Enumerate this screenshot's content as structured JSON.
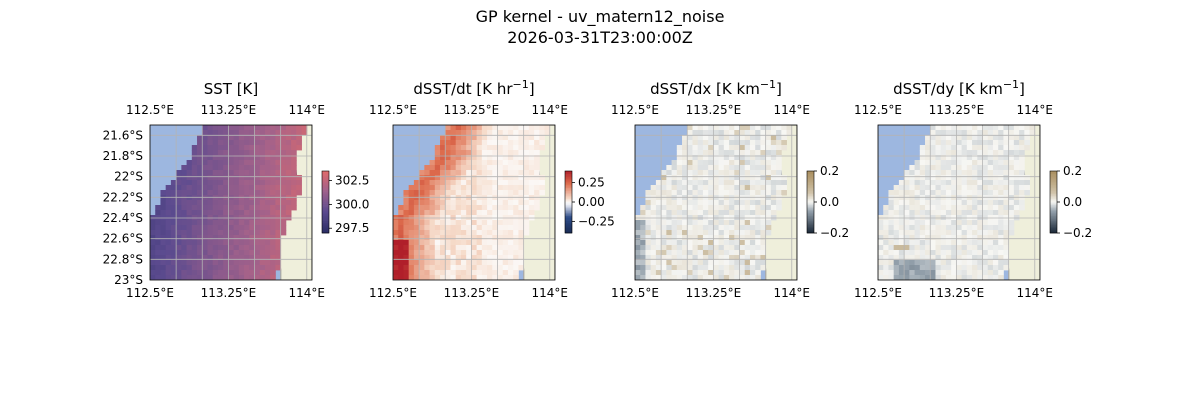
{
  "figure": {
    "title_line1": "GP kernel - uv_matern12_noise",
    "title_line2": "2026-03-31T23:00:00Z"
  },
  "colors": {
    "ocean": "#9db7e0",
    "land": "#efefdb",
    "coast": "#6d6d6d",
    "grid": "#b4b4b4",
    "sst_low": "#5c4b8f",
    "sst_high": "#e06a6a",
    "dt_low": "#2b4a86",
    "dt_high": "#b01f2a",
    "grad_low": "#1b2838",
    "grad_high": "#a88c5c"
  },
  "chart_data": [
    {
      "type": "heatmap",
      "title": "SST [K]",
      "title_sup": "",
      "title_suffix": "",
      "lon_ticks": [
        "112.5°E",
        "113.25°E",
        "114°E"
      ],
      "lat_ticks": [
        "21.6°S",
        "21.8°S",
        "22°S",
        "22.2°S",
        "22.4°S",
        "22.6°S",
        "22.8°S",
        "23°S"
      ],
      "xlim": [
        112.5,
        114.05
      ],
      "ylim": [
        -23.0,
        -21.5
      ],
      "colorbar": {
        "ticks": [
          "302.5",
          "300.0",
          "297.5"
        ],
        "tick_values": [
          302.5,
          300.0,
          297.5
        ],
        "range": [
          297.0,
          303.5
        ],
        "cmap": "plasma_muted"
      },
      "field": "sst"
    },
    {
      "type": "heatmap",
      "title": "dSST/dt [K hr",
      "title_sup": "−1",
      "title_suffix": "]",
      "lon_ticks": [
        "112.5°E",
        "113.25°E",
        "114°E"
      ],
      "lat_ticks": [],
      "xlim": [
        112.5,
        114.05
      ],
      "ylim": [
        -23.0,
        -21.5
      ],
      "colorbar": {
        "ticks": [
          "0.25",
          "0.00",
          "−0.25"
        ],
        "tick_values": [
          0.25,
          0.0,
          -0.25
        ],
        "range": [
          -0.4,
          0.4
        ],
        "cmap": "balance"
      },
      "field": "dt"
    },
    {
      "type": "heatmap",
      "title": "dSST/dx [K km",
      "title_sup": "−1",
      "title_suffix": "]",
      "lon_ticks": [
        "112.5°E",
        "113.25°E",
        "114°E"
      ],
      "lat_ticks": [],
      "xlim": [
        112.5,
        114.05
      ],
      "ylim": [
        -23.0,
        -21.5
      ],
      "colorbar": {
        "ticks": [
          "0.2",
          "0.0",
          "−0.2"
        ],
        "tick_values": [
          0.2,
          0.0,
          -0.2
        ],
        "range": [
          -0.2,
          0.2
        ],
        "cmap": "diff"
      },
      "field": "dx"
    },
    {
      "type": "heatmap",
      "title": "dSST/dy [K km",
      "title_sup": "−1",
      "title_suffix": "]",
      "lon_ticks": [
        "112.5°E",
        "113.25°E",
        "114°E"
      ],
      "lat_ticks": [],
      "xlim": [
        112.5,
        114.05
      ],
      "ylim": [
        -23.0,
        -21.5
      ],
      "colorbar": {
        "ticks": [
          "0.2",
          "0.0",
          "−0.2"
        ],
        "tick_values": [
          0.2,
          0.0,
          -0.2
        ],
        "range": [
          -0.2,
          0.2
        ],
        "cmap": "diff"
      },
      "field": "dy"
    }
  ]
}
